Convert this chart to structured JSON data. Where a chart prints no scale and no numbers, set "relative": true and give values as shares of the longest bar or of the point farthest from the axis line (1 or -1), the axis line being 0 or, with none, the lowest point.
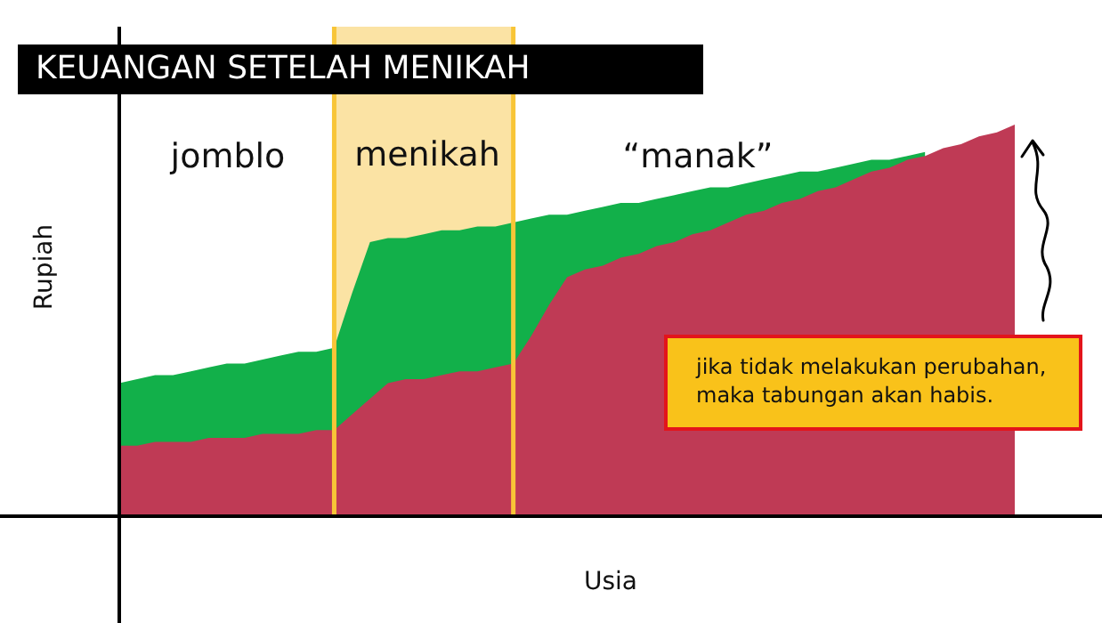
{
  "chart_data": {
    "type": "area",
    "title": "KEUANGAN SETELAH MENIKAH",
    "xlabel": "Usia",
    "ylabel": "Rupiah",
    "relative": true,
    "marker": "none",
    "legend": false,
    "categories": [
      null,
      null,
      null,
      null,
      null,
      null,
      null,
      null,
      null,
      null,
      null,
      null,
      null,
      null,
      null,
      null,
      null,
      null,
      null,
      null,
      null,
      null,
      null,
      null,
      null,
      null,
      null,
      null,
      null,
      null,
      null,
      null,
      null,
      null,
      null,
      null,
      null,
      null,
      null,
      null,
      null,
      null,
      null,
      null,
      null,
      null,
      null,
      null,
      null,
      null,
      null
    ],
    "series": [
      {
        "color": "#12b04a",
        "values": [
          0.34,
          0.35,
          0.36,
          0.36,
          0.37,
          0.38,
          0.39,
          0.39,
          0.4,
          0.41,
          0.42,
          0.42,
          0.43,
          0.57,
          0.7,
          0.71,
          0.71,
          0.72,
          0.73,
          0.73,
          0.74,
          0.74,
          0.75,
          0.76,
          0.77,
          0.77,
          0.78,
          0.79,
          0.8,
          0.8,
          0.81,
          0.82,
          0.83,
          0.84,
          0.84,
          0.85,
          0.86,
          0.87,
          0.88,
          0.88,
          0.89,
          0.9,
          0.91,
          0.91,
          0.92,
          0.93,
          null,
          null,
          null,
          null,
          null
        ]
      },
      {
        "color": "#bf3a55",
        "values": [
          0.18,
          0.18,
          0.19,
          0.19,
          0.19,
          0.2,
          0.2,
          0.2,
          0.21,
          0.21,
          0.21,
          0.22,
          0.22,
          0.26,
          0.3,
          0.34,
          0.35,
          0.35,
          0.36,
          0.37,
          0.37,
          0.38,
          0.39,
          0.46,
          0.54,
          0.61,
          0.63,
          0.64,
          0.66,
          0.67,
          0.69,
          0.7,
          0.72,
          0.73,
          0.75,
          0.77,
          0.78,
          0.8,
          0.81,
          0.83,
          0.84,
          0.86,
          0.88,
          0.89,
          0.91,
          0.92,
          0.94,
          0.95,
          0.97,
          0.98,
          1
        ]
      }
    ],
    "annotations": [
      "jomblo",
      "menikah",
      "“manak”",
      "jika tidak melakukan perubahan, maka tabungan akan habis."
    ]
  }
}
